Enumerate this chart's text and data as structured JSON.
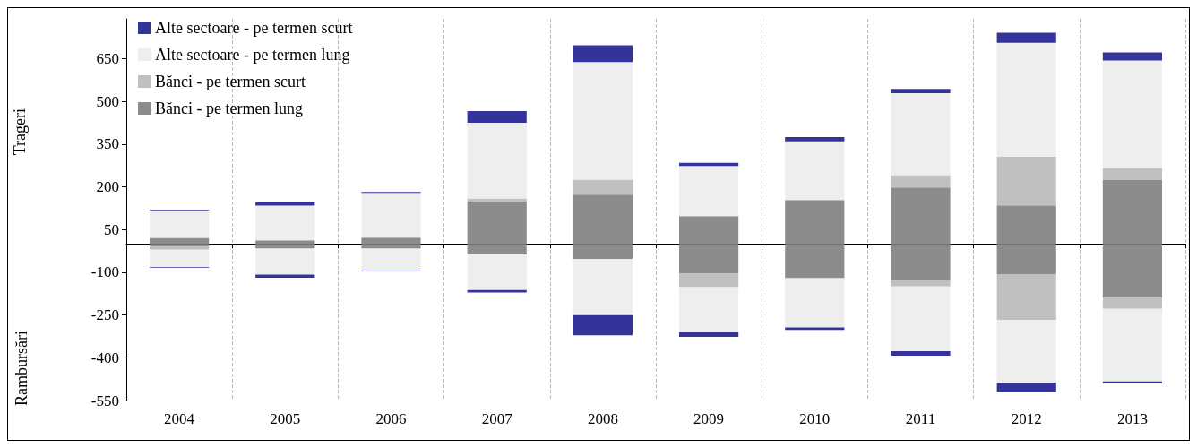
{
  "chart_data": {
    "type": "bar",
    "stacked": true,
    "ylabel": "Trageri",
    "annotations": [
      "Rambursări"
    ],
    "categories": [
      "2004",
      "2005",
      "2006",
      "2007",
      "2008",
      "2009",
      "2010",
      "2011",
      "2012",
      "2013"
    ],
    "series": [
      {
        "name": "Bănci - pe termen lung",
        "color": "#8c8c8c",
        "values": [
          21,
          12,
          22,
          148,
          173,
          97,
          154,
          198,
          135,
          225
        ]
      },
      {
        "name": "Bănci - pe termen scurt",
        "color": "#c0c0c0",
        "values": [
          0,
          0,
          0,
          11,
          52,
          0,
          0,
          43,
          171,
          41
        ]
      },
      {
        "name": "Alte sectoare - pe termen lung",
        "color": "#eeeeee",
        "values": [
          97,
          122,
          157,
          266,
          413,
          176,
          206,
          288,
          400,
          378
        ]
      },
      {
        "name": "Alte sectoare - pe termen scurt",
        "color": "#333399",
        "values": [
          2,
          13,
          3,
          41,
          59,
          11,
          15,
          15,
          35,
          28
        ]
      },
      {
        "color": "#8c8c8c",
        "values": [
          -6,
          -17,
          -17,
          -37,
          -54,
          -105,
          -121,
          -127,
          -108,
          -190
        ]
      },
      {
        "color": "#c0c0c0",
        "values": [
          -15,
          0,
          0,
          0,
          0,
          -47,
          0,
          -23,
          -160,
          -38
        ]
      },
      {
        "color": "#eeeeee",
        "values": [
          -60,
          -91,
          -77,
          -125,
          -196,
          -157,
          -173,
          -227,
          -220,
          -255
        ]
      },
      {
        "color": "#333399",
        "values": [
          -3,
          -11,
          -3,
          -9,
          -71,
          -18,
          -8,
          -16,
          -33,
          -7
        ]
      }
    ],
    "ylim": [
      -550,
      790
    ],
    "yticks": [
      -550,
      -400,
      -250,
      -100,
      50,
      200,
      350,
      500,
      650
    ],
    "grid": "x",
    "legend": "top left"
  }
}
